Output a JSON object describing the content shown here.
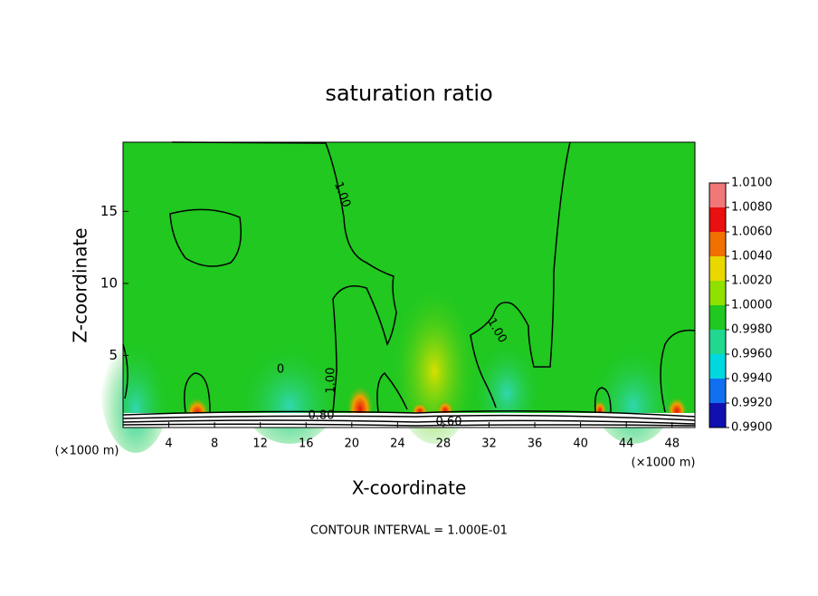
{
  "chart_data": {
    "type": "contour",
    "title": "saturation ratio",
    "x_label": "X-coordinate",
    "y_label": "Z-coordinate",
    "axis_unit": "(×1000 m)",
    "xlim": [
      0,
      50
    ],
    "xticks": [
      4,
      8,
      12,
      16,
      20,
      24,
      28,
      32,
      36,
      40,
      44,
      48
    ],
    "ylim": [
      0,
      19.8
    ],
    "yticks": [
      5,
      10,
      15
    ],
    "contour_labels": [
      "1.00",
      "1.00",
      "1.00",
      "0.80",
      "0.60",
      "0"
    ],
    "colorbar": {
      "ticks": [
        {
          "value": 1.01,
          "label": "1.0100"
        },
        {
          "value": 1.008,
          "label": "1.0080"
        },
        {
          "value": 1.006,
          "label": "1.0060"
        },
        {
          "value": 1.004,
          "label": "1.0040"
        },
        {
          "value": 1.002,
          "label": "1.0020"
        },
        {
          "value": 1.0,
          "label": "1.0000"
        },
        {
          "value": 0.998,
          "label": "0.9980"
        },
        {
          "value": 0.996,
          "label": "0.9960"
        },
        {
          "value": 0.994,
          "label": "0.9940"
        },
        {
          "value": 0.992,
          "label": "0.9920"
        },
        {
          "value": 0.99,
          "label": "0.9900"
        }
      ],
      "colors": [
        "#f07878",
        "#e81010",
        "#f07000",
        "#e8d800",
        "#90e000",
        "#20c820",
        "#20d890",
        "#00d8e0",
        "#1070f0",
        "#1010b0"
      ]
    },
    "note": "CONTOUR INTERVAL = 1.000E-01"
  }
}
